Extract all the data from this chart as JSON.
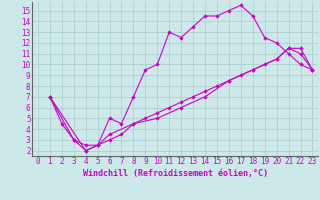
{
  "xlabel": "Windchill (Refroidissement éolien,°C)",
  "bg_color": "#cce8e8",
  "line_color": "#cc00cc",
  "grid_color": "#aacccc",
  "axis_color": "#666666",
  "xlim": [
    -0.5,
    23.5
  ],
  "ylim": [
    1.5,
    15.8
  ],
  "xticks": [
    0,
    1,
    2,
    3,
    4,
    5,
    6,
    7,
    8,
    9,
    10,
    11,
    12,
    13,
    14,
    15,
    16,
    17,
    18,
    19,
    20,
    21,
    22,
    23
  ],
  "yticks": [
    2,
    3,
    4,
    5,
    6,
    7,
    8,
    9,
    10,
    11,
    12,
    13,
    14,
    15
  ],
  "line1_x": [
    1,
    2,
    3,
    4,
    5,
    6,
    7,
    8,
    9,
    10,
    11,
    12,
    13,
    14,
    15,
    16,
    17,
    18,
    19,
    20,
    21,
    22,
    23
  ],
  "line1_y": [
    7,
    4.5,
    3,
    2.5,
    2.5,
    5.0,
    4.5,
    7,
    9.5,
    10,
    13,
    12.5,
    13.5,
    14.5,
    14.5,
    15.0,
    15.5,
    14.5,
    12.5,
    12,
    11,
    10,
    9.5
  ],
  "line2_x": [
    1,
    3,
    4,
    5,
    6,
    7,
    8,
    9,
    10,
    11,
    12,
    13,
    14,
    15,
    16,
    17,
    18,
    19,
    20,
    21,
    22,
    23
  ],
  "line2_y": [
    7,
    3,
    2.0,
    2.5,
    3.0,
    3.5,
    4.5,
    5.0,
    5.5,
    6,
    6.5,
    7,
    7.5,
    8,
    8.5,
    9,
    9.5,
    10,
    10.5,
    11.5,
    11.5,
    9.5
  ],
  "line3_x": [
    1,
    4,
    5,
    6,
    8,
    10,
    12,
    14,
    16,
    18,
    20,
    21,
    22,
    23
  ],
  "line3_y": [
    7,
    2.0,
    2.5,
    3.5,
    4.5,
    5.0,
    6.0,
    7.0,
    8.5,
    9.5,
    10.5,
    11.5,
    11.0,
    9.5
  ],
  "tick_fontsize": 5.5,
  "xlabel_fontsize": 6.0
}
